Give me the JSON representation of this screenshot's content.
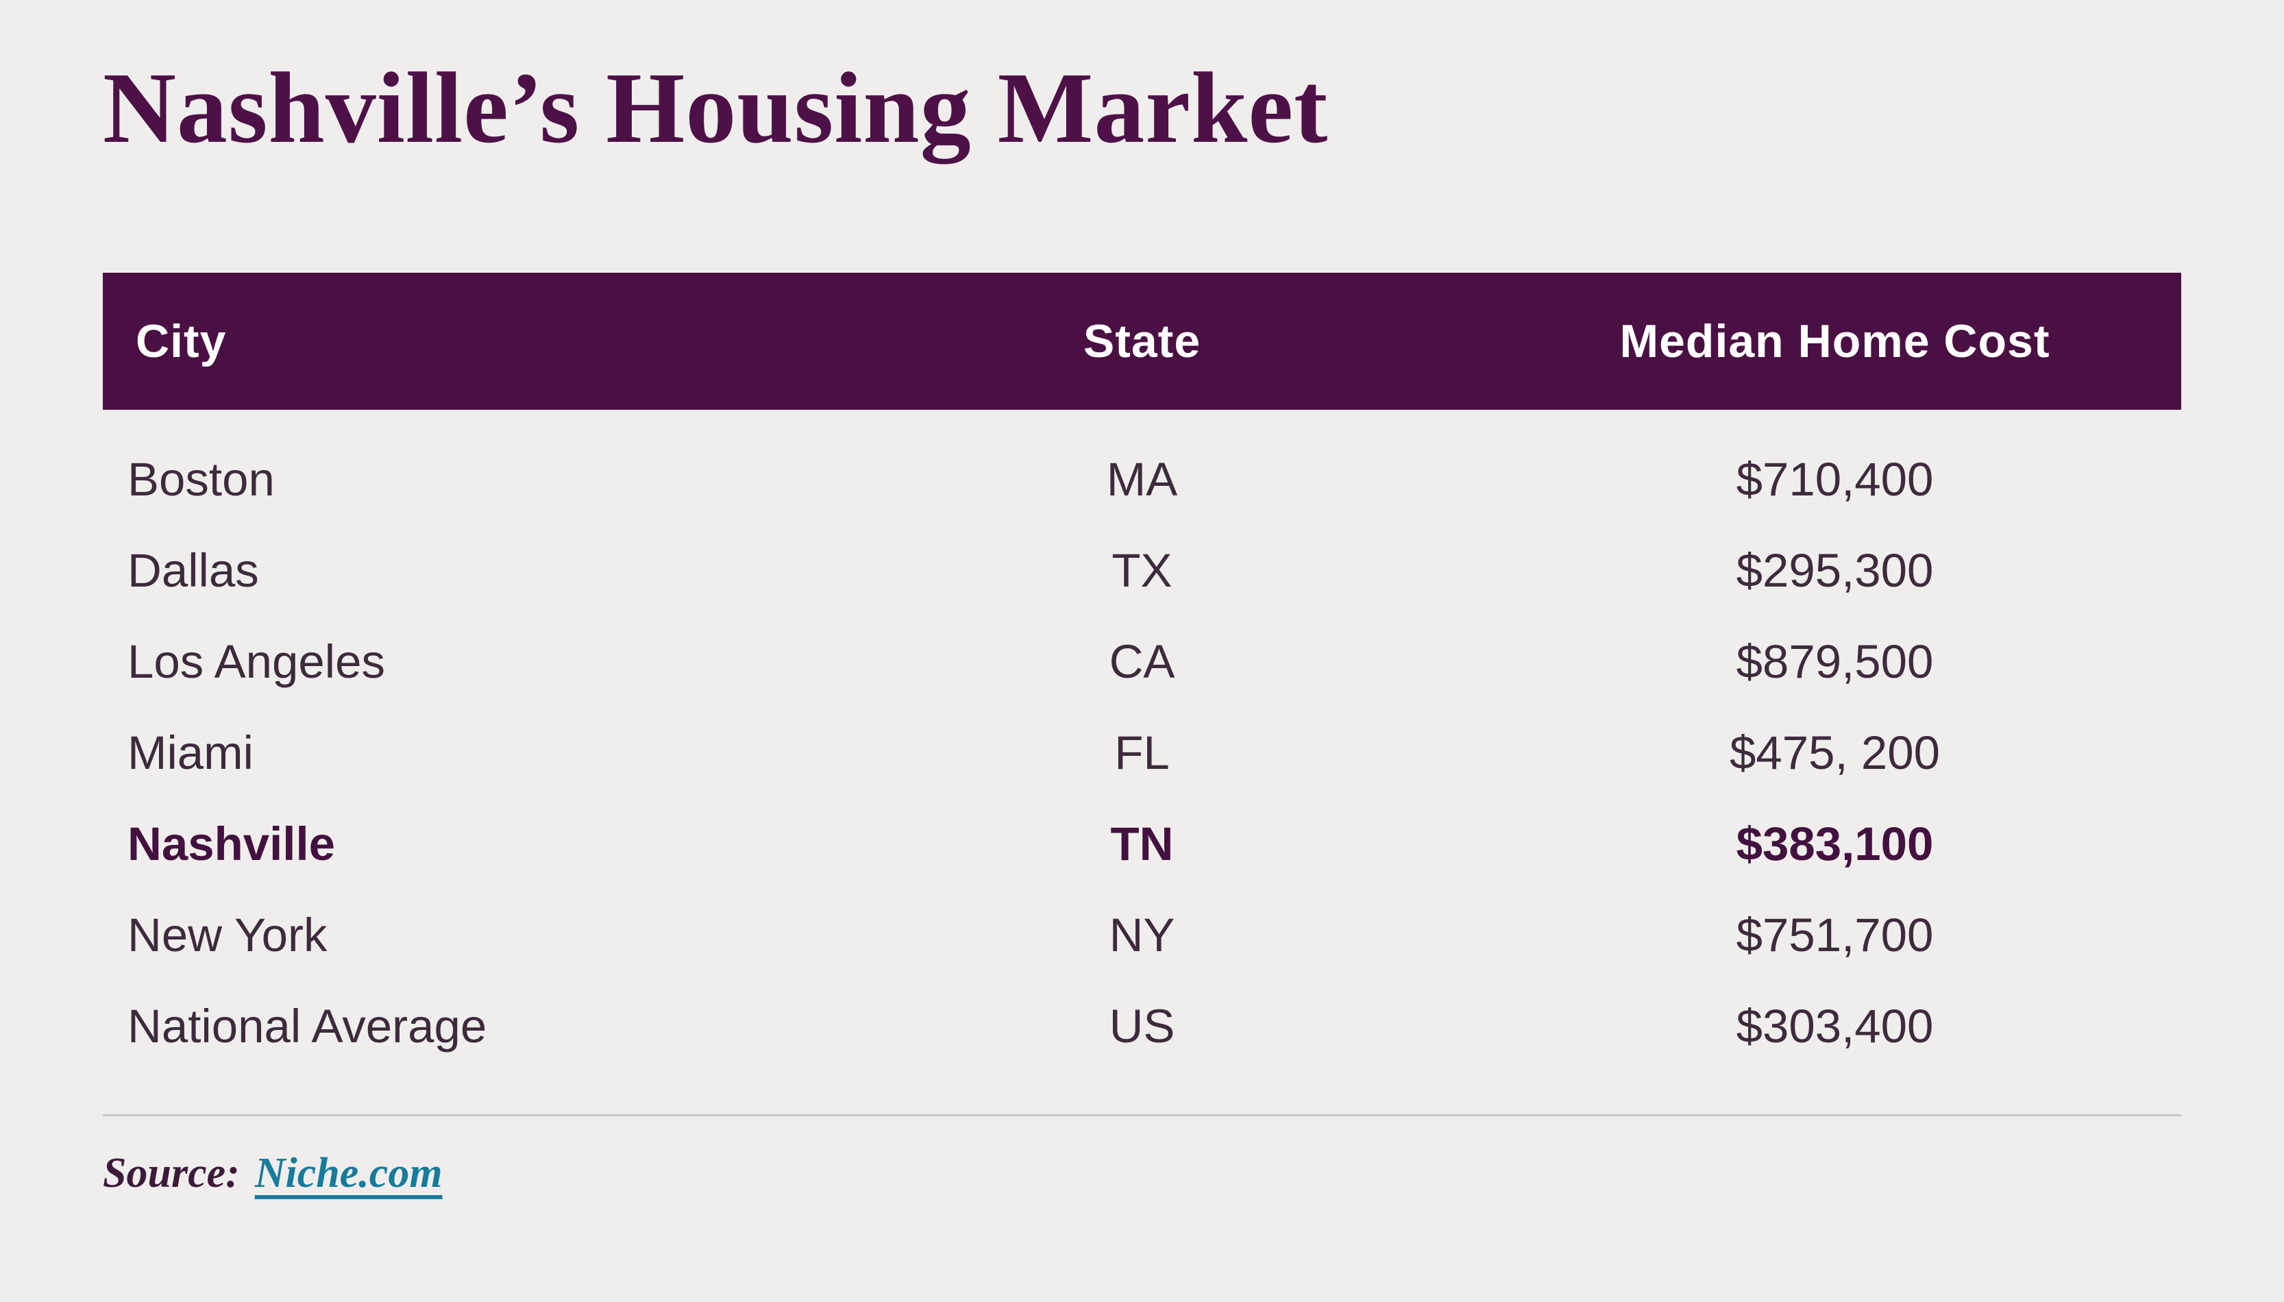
{
  "title": "Nashville’s Housing Market",
  "colors": {
    "background": "#efeeec",
    "header_bg": "#4a1043",
    "header_text": "#ffffff",
    "title_text": "#4d1147",
    "body_text": "#3d2b3c",
    "highlight_text": "#43113f",
    "link": "#177b9b",
    "divider": "#c9c7c5"
  },
  "table": {
    "columns": [
      {
        "label": "City",
        "align": "left"
      },
      {
        "label": "State",
        "align": "center"
      },
      {
        "label": "Median Home Cost",
        "align": "center"
      }
    ],
    "rows": [
      {
        "city": "Boston",
        "state": "MA",
        "cost": "$710,400",
        "highlight": false
      },
      {
        "city": "Dallas",
        "state": "TX",
        "cost": "$295,300",
        "highlight": false
      },
      {
        "city": "Los Angeles",
        "state": "CA",
        "cost": "$879,500",
        "highlight": false
      },
      {
        "city": "Miami",
        "state": "FL",
        "cost": "$475, 200",
        "highlight": false
      },
      {
        "city": "Nashville",
        "state": "TN",
        "cost": "$383,100",
        "highlight": true
      },
      {
        "city": "New York",
        "state": "NY",
        "cost": "$751,700",
        "highlight": false
      },
      {
        "city": "National Average",
        "state": "US",
        "cost": "$303,400",
        "highlight": false
      }
    ]
  },
  "source": {
    "label": "Source:",
    "link_text": "Niche.com"
  },
  "chart_data": {
    "type": "table",
    "title": "Nashville’s Housing Market",
    "columns": [
      "City",
      "State",
      "Median Home Cost"
    ],
    "rows": [
      [
        "Boston",
        "MA",
        710400
      ],
      [
        "Dallas",
        "TX",
        295300
      ],
      [
        "Los Angeles",
        "CA",
        879500
      ],
      [
        "Miami",
        "FL",
        475200
      ],
      [
        "Nashville",
        "TN",
        383100
      ],
      [
        "New York",
        "NY",
        751700
      ],
      [
        "National Average",
        "US",
        303400
      ]
    ],
    "highlight_row": "Nashville",
    "source": "Niche.com"
  }
}
